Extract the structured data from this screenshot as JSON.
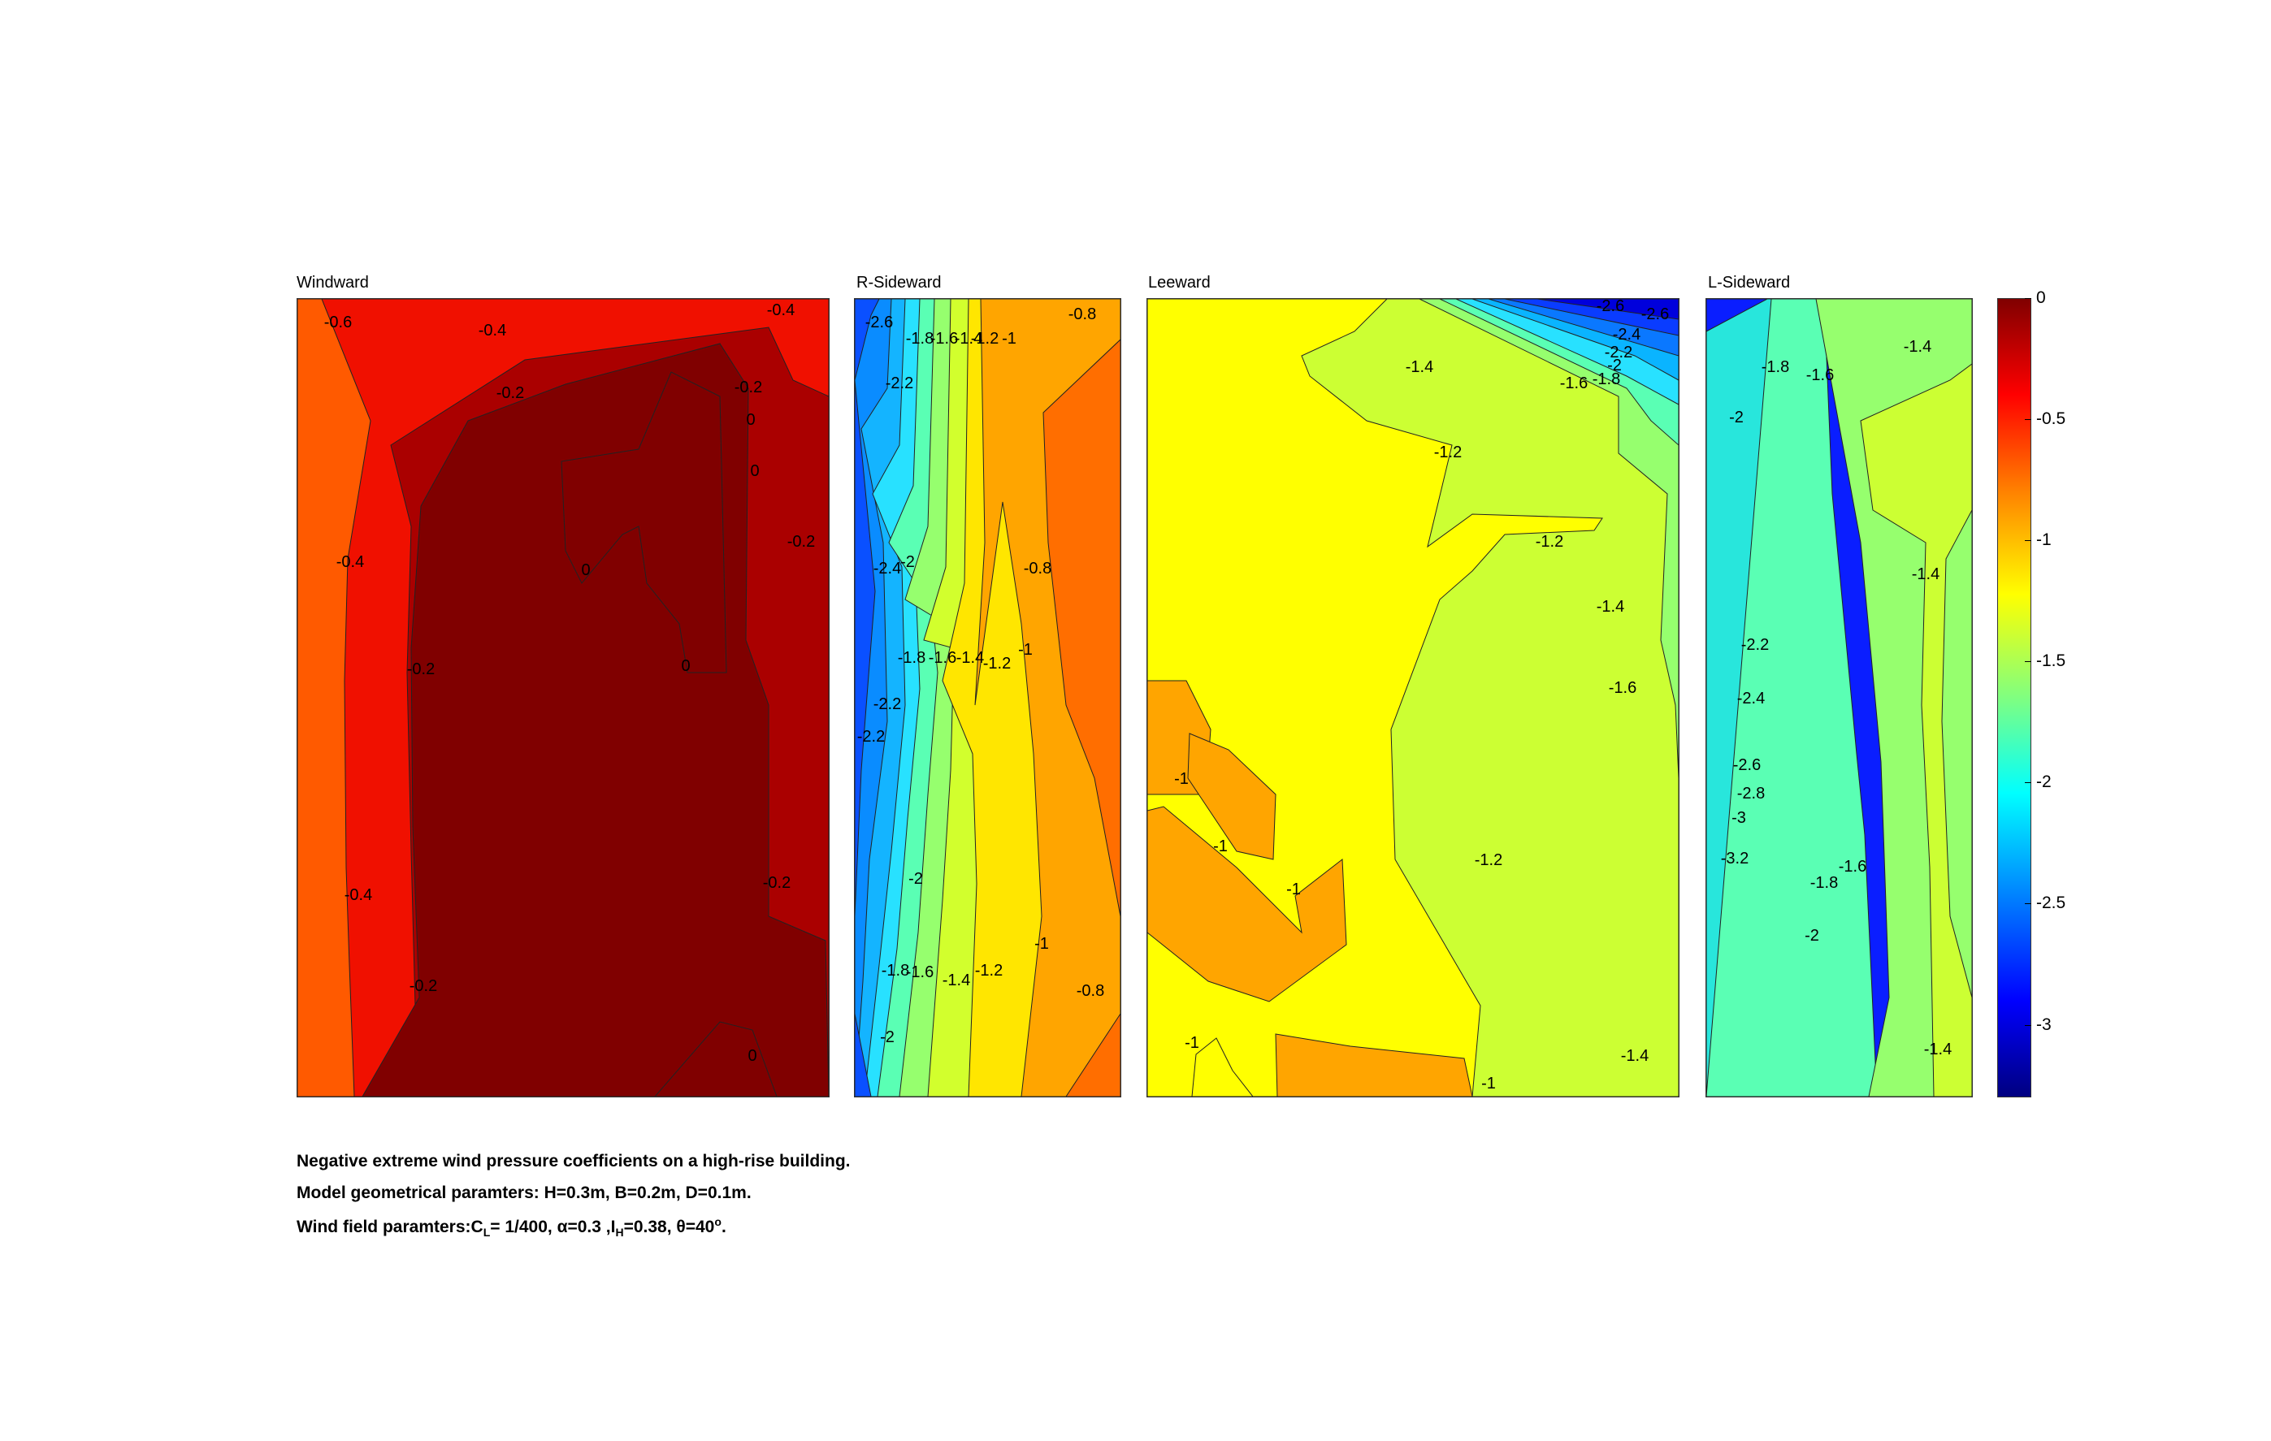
{
  "chart_data": {
    "type": "heatmap",
    "description_lines": [
      "Negative extreme wind pressure coefficients on a high-rise building.",
      "Model geometrical paramters: H=0.3m, B=0.2m, D=0.1m."
    ],
    "wind_line": {
      "prefix": "Wind field paramters:C",
      "cl_sub": "L",
      "cl_value": "= 1/400, ",
      "alpha": "α=0.3 ,I",
      "ih_sub": "H",
      "ih_value": "=0.38, ",
      "theta": "θ=40",
      "theta_sup": "o",
      "end": "."
    },
    "colorbar": {
      "range": [
        -3.3,
        0
      ],
      "ticks": [
        "0",
        "-0.5",
        "-1",
        "-1.5",
        "-2",
        "-2.5",
        "-3"
      ],
      "tick_values": [
        0,
        -0.5,
        -1,
        -1.5,
        -2,
        -2.5,
        -3
      ],
      "colormap": "jet"
    },
    "panels": [
      {
        "title": "Windward",
        "bands": [
          {
            "value": -0.5,
            "color": "#ff5a00"
          },
          {
            "value": -0.3,
            "color": "#f01000"
          },
          {
            "value": -0.1,
            "color": "#aa0000"
          },
          {
            "value": 0.05,
            "color": "#800000"
          }
        ],
        "labels": [
          "-0.6",
          "-0.4",
          "-0.4",
          "-0.2",
          "-0.2",
          "0",
          "0",
          "-0.2",
          "-0.4",
          "0",
          "-0.2",
          "0",
          "-0.2",
          "-0.4",
          "-0.2",
          "0"
        ]
      },
      {
        "title": "R-Sideward",
        "bands": [
          {
            "value": -2.5,
            "color": "#0a50ff"
          },
          {
            "value": -2.3,
            "color": "#0a8cff"
          },
          {
            "value": -2.1,
            "color": "#14b4ff"
          },
          {
            "value": -1.9,
            "color": "#28e1ff"
          },
          {
            "value": -1.7,
            "color": "#5affb4"
          },
          {
            "value": -1.5,
            "color": "#96ff6e"
          },
          {
            "value": -1.3,
            "color": "#d2ff2d"
          },
          {
            "value": -1.1,
            "color": "#ffe600"
          },
          {
            "value": -0.9,
            "color": "#ffa500"
          },
          {
            "value": -0.75,
            "color": "#ff6e00"
          }
        ],
        "labels": [
          "-2.6",
          "-1.8",
          "-1.6",
          "-1.4",
          "-1.2",
          "-1",
          "-0.8",
          "-2.2",
          "-2",
          "-2.4",
          "-0.8",
          "-1.8",
          "-1.6",
          "-1.4",
          "-1.2",
          "-1",
          "-2.2",
          "-2.2",
          "-2",
          "-1.8",
          "-1.6",
          "-1.4",
          "-1.2",
          "-1",
          "-0.8",
          "-2"
        ]
      },
      {
        "title": "Leeward",
        "bands": [
          {
            "value": -0.95,
            "color": "#ffa500"
          },
          {
            "value": -1.1,
            "color": "#ffff00"
          },
          {
            "value": -1.3,
            "color": "#ccff33"
          },
          {
            "value": -1.5,
            "color": "#96ff6e"
          },
          {
            "value": -1.7,
            "color": "#5affb4"
          },
          {
            "value": -1.9,
            "color": "#28e1ff"
          },
          {
            "value": -2.1,
            "color": "#0ab4ff"
          },
          {
            "value": -2.3,
            "color": "#0a78ff"
          },
          {
            "value": -2.5,
            "color": "#0a3cff"
          },
          {
            "value": -2.7,
            "color": "#0000dc"
          }
        ],
        "labels": [
          "-2.6",
          "-2.6",
          "-2.4",
          "-2.2",
          "-2",
          "-1.8",
          "-1.6",
          "-1.4",
          "-1.2",
          "-1.2",
          "-1.4",
          "-1.6",
          "-1",
          "-1",
          "-1",
          "-1.2",
          "-1",
          "-1",
          "-1.4"
        ]
      },
      {
        "title": "L-Sideward",
        "bands": [
          {
            "value": -3.1,
            "color": "#00009b"
          },
          {
            "value": -2.9,
            "color": "#0000dc"
          },
          {
            "value": -2.7,
            "color": "#0a1eff"
          },
          {
            "value": -2.5,
            "color": "#0a50ff"
          },
          {
            "value": -2.3,
            "color": "#0a8cff"
          },
          {
            "value": -2.1,
            "color": "#0ac8ff"
          },
          {
            "value": -1.9,
            "color": "#28e6dc"
          },
          {
            "value": -1.7,
            "color": "#5affb4"
          },
          {
            "value": -1.5,
            "color": "#96ff6e"
          },
          {
            "value": -1.35,
            "color": "#ccff33"
          }
        ],
        "labels": [
          "-1.8",
          "-1.6",
          "-1.4",
          "-2",
          "-1.4",
          "-2.2",
          "-2.4",
          "-2.6",
          "-2.8",
          "-3",
          "-3.2",
          "-1.8",
          "-1.6",
          "-2",
          "-1.4"
        ]
      }
    ]
  }
}
